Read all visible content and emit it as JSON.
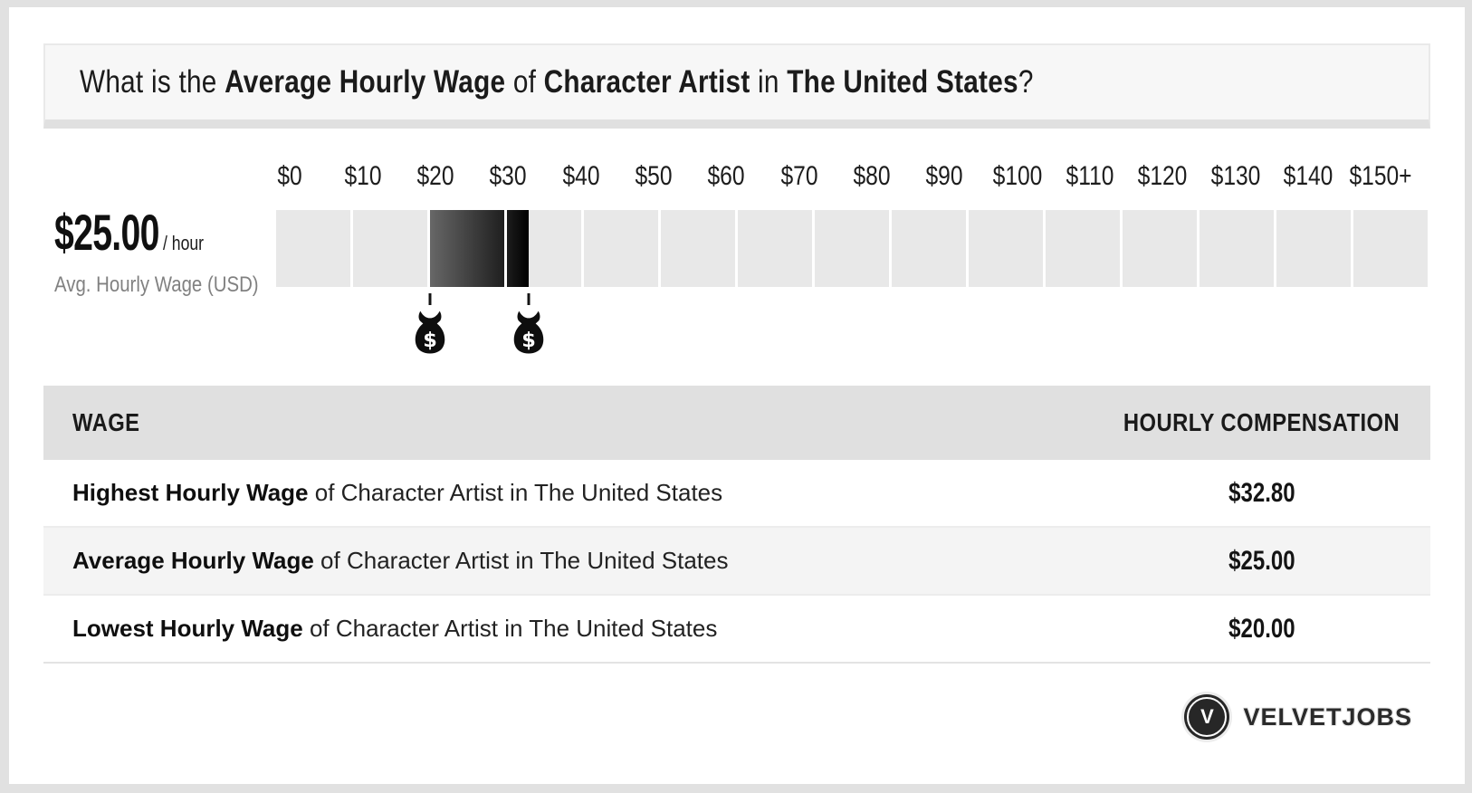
{
  "header": {
    "title_parts": [
      {
        "text": "What is the ",
        "bold": false
      },
      {
        "text": "Average Hourly Wage",
        "bold": true
      },
      {
        "text": " of ",
        "bold": false
      },
      {
        "text": "Character Artist",
        "bold": true
      },
      {
        "text": " in ",
        "bold": false
      },
      {
        "text": "The United States",
        "bold": true
      },
      {
        "text": "?",
        "bold": false
      }
    ]
  },
  "wage_summary": {
    "amount": "$25.00",
    "per": "/ hour",
    "caption": "Avg. Hourly Wage (USD)"
  },
  "chart_data": {
    "type": "range-scale",
    "title": "Hourly wage range of Character Artist in The United States",
    "unit": "USD per hour",
    "axis_min": 0,
    "axis_max": 150,
    "axis_ticks": [
      "$0",
      "$10",
      "$20",
      "$30",
      "$40",
      "$50",
      "$60",
      "$70",
      "$80",
      "$90",
      "$100",
      "$110",
      "$120",
      "$130",
      "$140",
      "$150+"
    ],
    "segment_count": 15,
    "range_bar": {
      "start": 20.0,
      "end": 32.8
    },
    "markers": [
      {
        "name": "lowest",
        "value": 20.0
      },
      {
        "name": "highest",
        "value": 32.8
      }
    ],
    "values": {
      "lowest": 20.0,
      "average": 25.0,
      "highest": 32.8
    },
    "legend": "dark gradient bar spans lowest to highest wage; money-bag markers at range ends"
  },
  "table": {
    "columns": [
      "WAGE",
      "HOURLY COMPENSATION"
    ],
    "rows": [
      {
        "bold": "Highest Hourly Wage",
        "rest": " of Character Artist in The United States",
        "value": "$32.80"
      },
      {
        "bold": "Average Hourly Wage",
        "rest": " of Character Artist in The United States",
        "value": "$25.00"
      },
      {
        "bold": "Lowest Hourly Wage",
        "rest": " of Character Artist in The United States",
        "value": "$20.00"
      }
    ]
  },
  "logo": {
    "mark": "V",
    "text": "VELVETJOBS"
  },
  "colors": {
    "frame": "#e1e1e1",
    "header_bg": "#f7f7f7",
    "segment": "#e8e8e8",
    "bar_gradient_start": "#676767",
    "bar_gradient_end": "#000000",
    "table_header_bg": "#e0e0e0",
    "row_alt_bg": "#f4f4f4",
    "caption_gray": "#818181",
    "logo_dark": "#272727"
  }
}
